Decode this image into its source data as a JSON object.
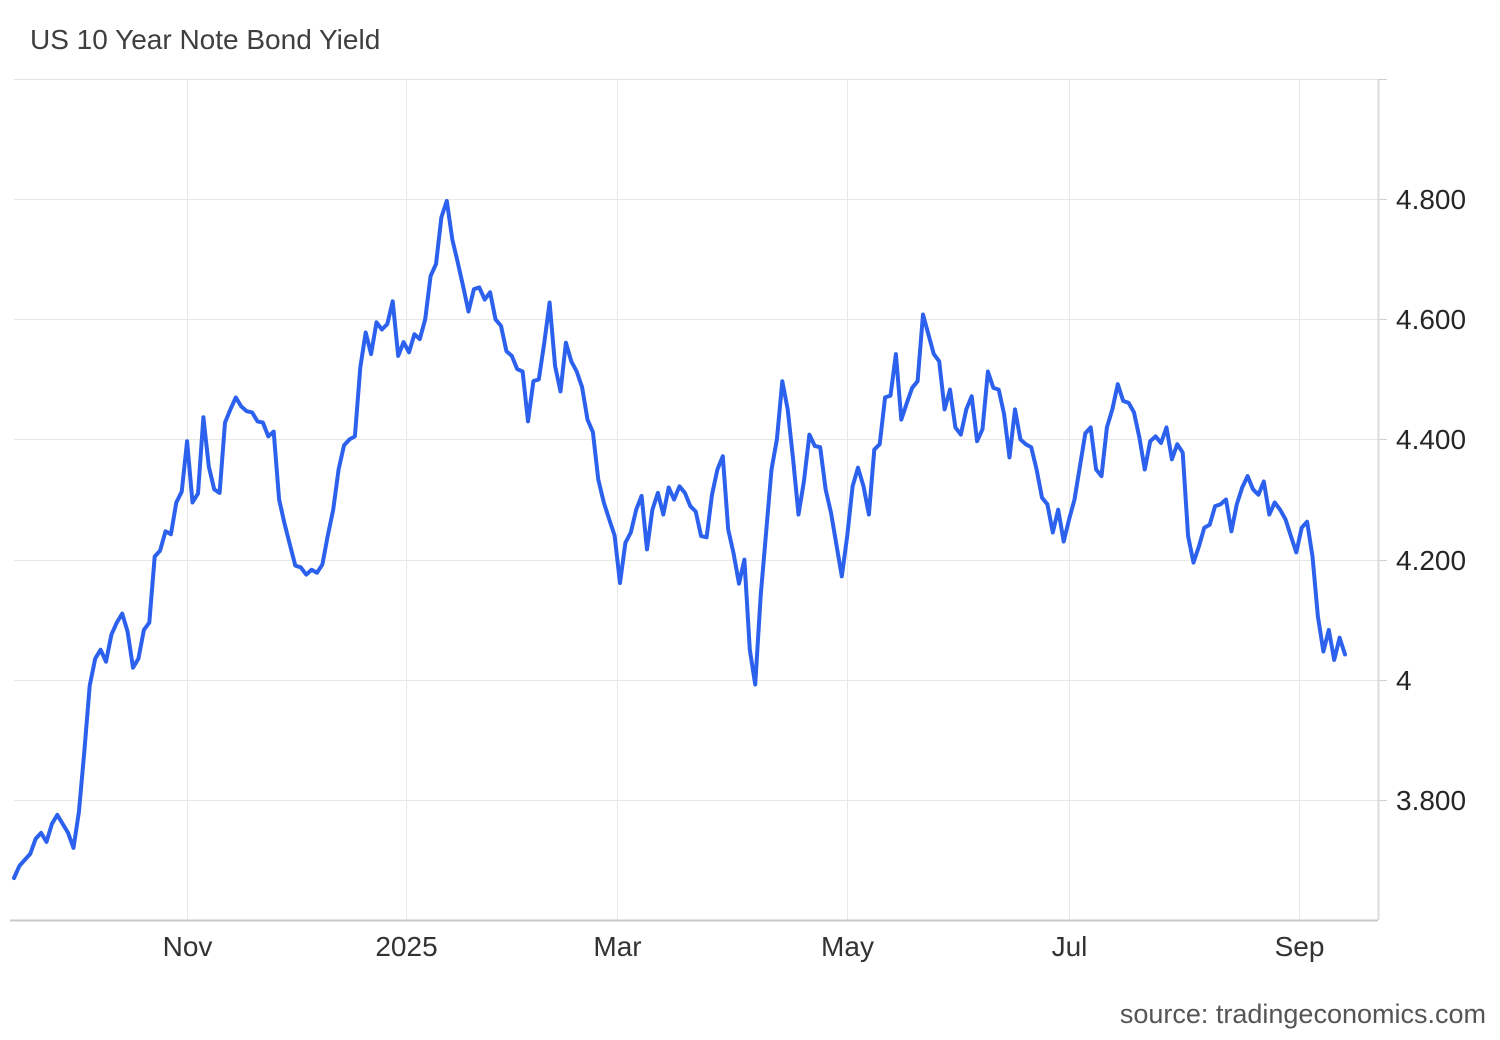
{
  "title": "US 10 Year Note Bond Yield",
  "source": "source: tradingeconomics.com",
  "chart_data": {
    "type": "line",
    "title": "US 10 Year Note Bond Yield",
    "xlabel": "",
    "ylabel": "",
    "legend": false,
    "grid": true,
    "line_color": "#2c61ee",
    "grid_color": "#e8e8e8",
    "axis_color": "#cfcfcf",
    "ylim": [
      3.6,
      5.0
    ],
    "y_ticks": [
      {
        "value": 4.8,
        "label": "4.800"
      },
      {
        "value": 4.6,
        "label": "4.600"
      },
      {
        "value": 4.4,
        "label": "4.400"
      },
      {
        "value": 4.2,
        "label": "4.200"
      },
      {
        "value": 4.0,
        "label": "4"
      },
      {
        "value": 3.8,
        "label": "3.800"
      }
    ],
    "x_ticks": [
      {
        "index": 32,
        "label": "Nov"
      },
      {
        "index": 72.5,
        "label": "2025"
      },
      {
        "index": 111.5,
        "label": "Mar"
      },
      {
        "index": 154,
        "label": "May"
      },
      {
        "index": 195,
        "label": "Jul"
      },
      {
        "index": 237.5,
        "label": "Sep"
      }
    ],
    "series": [
      {
        "name": "US 10 Year Note Bond Yield",
        "values": [
          3.67,
          3.69,
          3.7,
          3.71,
          3.735,
          3.745,
          3.73,
          3.76,
          3.775,
          3.76,
          3.745,
          3.72,
          3.78,
          3.88,
          3.99,
          4.035,
          4.05,
          4.03,
          4.075,
          4.095,
          4.11,
          4.08,
          4.02,
          4.035,
          4.083,
          4.095,
          4.205,
          4.215,
          4.247,
          4.242,
          4.295,
          4.313,
          4.397,
          4.295,
          4.31,
          4.437,
          4.355,
          4.317,
          4.311,
          4.428,
          4.45,
          4.47,
          4.455,
          4.447,
          4.445,
          4.43,
          4.428,
          4.405,
          4.413,
          4.3,
          4.26,
          4.225,
          4.19,
          4.187,
          4.175,
          4.183,
          4.178,
          4.192,
          4.24,
          4.283,
          4.35,
          4.39,
          4.4,
          4.405,
          4.52,
          4.578,
          4.542,
          4.595,
          4.583,
          4.592,
          4.63,
          4.539,
          4.562,
          4.545,
          4.575,
          4.567,
          4.6,
          4.672,
          4.692,
          4.77,
          4.797,
          4.733,
          4.695,
          4.655,
          4.613,
          4.65,
          4.653,
          4.633,
          4.645,
          4.6,
          4.589,
          4.547,
          4.539,
          4.517,
          4.513,
          4.43,
          4.497,
          4.5,
          4.56,
          4.628,
          4.522,
          4.48,
          4.561,
          4.53,
          4.513,
          4.487,
          4.433,
          4.412,
          4.333,
          4.295,
          4.267,
          4.24,
          4.161,
          4.228,
          4.245,
          4.283,
          4.306,
          4.217,
          4.283,
          4.311,
          4.275,
          4.32,
          4.3,
          4.322,
          4.311,
          4.289,
          4.28,
          4.239,
          4.237,
          4.308,
          4.35,
          4.372,
          4.25,
          4.21,
          4.16,
          4.2,
          4.05,
          3.992,
          4.14,
          4.245,
          4.35,
          4.4,
          4.497,
          4.45,
          4.367,
          4.275,
          4.33,
          4.408,
          4.389,
          4.387,
          4.317,
          4.278,
          4.225,
          4.172,
          4.239,
          4.322,
          4.353,
          4.322,
          4.275,
          4.383,
          4.392,
          4.47,
          4.473,
          4.542,
          4.433,
          4.46,
          4.486,
          4.497,
          4.608,
          4.575,
          4.542,
          4.53,
          4.45,
          4.483,
          4.42,
          4.408,
          4.45,
          4.472,
          4.397,
          4.417,
          4.513,
          4.486,
          4.483,
          4.442,
          4.37,
          4.45,
          4.4,
          4.392,
          4.387,
          4.35,
          4.303,
          4.292,
          4.245,
          4.283,
          4.23,
          4.267,
          4.3,
          4.355,
          4.41,
          4.42,
          4.35,
          4.339,
          4.42,
          4.45,
          4.492,
          4.464,
          4.461,
          4.445,
          4.403,
          4.35,
          4.397,
          4.405,
          4.394,
          4.42,
          4.367,
          4.392,
          4.378,
          4.239,
          4.195,
          4.222,
          4.253,
          4.258,
          4.289,
          4.292,
          4.3,
          4.247,
          4.292,
          4.32,
          4.339,
          4.317,
          4.308,
          4.33,
          4.275,
          4.295,
          4.283,
          4.267,
          4.239,
          4.212,
          4.253,
          4.263,
          4.205,
          4.105,
          4.047,
          4.083,
          4.033,
          4.07,
          4.042
        ]
      }
    ]
  }
}
